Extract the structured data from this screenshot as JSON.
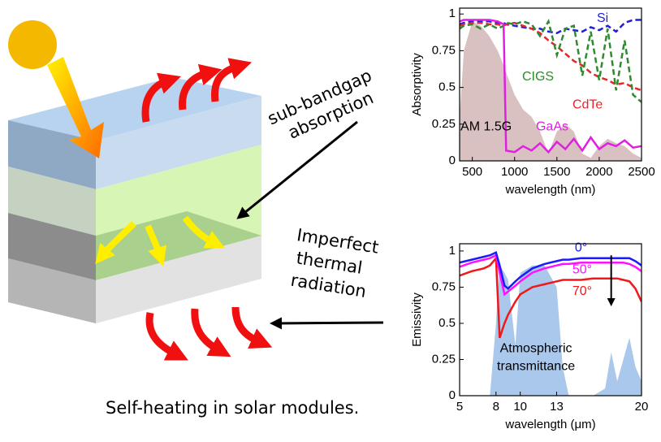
{
  "diagram": {
    "labels": [
      {
        "lines": [
          "sub-bandgap",
          "absorption"
        ]
      },
      {
        "lines": [
          "Imperfect",
          "thermal",
          "radiation"
        ]
      }
    ],
    "caption": "Self-heating in solar modules."
  },
  "chart_data": [
    {
      "type": "line",
      "y_label": "Absorptivity",
      "x_label": "wavelength (nm)",
      "x": [
        350,
        400,
        500,
        600,
        700,
        800,
        870,
        900,
        1000,
        1100,
        1200,
        1300,
        1400,
        1500,
        1600,
        1700,
        1800,
        1900,
        2000,
        2100,
        2200,
        2300,
        2400,
        2500
      ],
      "xlim": [
        350,
        2500
      ],
      "xticks": [
        500,
        1000,
        1500,
        2000,
        2500
      ],
      "ylim": [
        0,
        1.04
      ],
      "yticks": [
        0,
        0.25,
        0.5,
        0.75,
        1
      ],
      "series": [
        {
          "name": "AM 1.5G",
          "kind": "area",
          "color": "#d9c1c1",
          "values": [
            0.3,
            0.75,
            0.95,
            0.92,
            0.85,
            0.75,
            0.65,
            0.6,
            0.45,
            0.35,
            0.3,
            0.2,
            0.05,
            0.2,
            0.25,
            0.2,
            0.05,
            0.02,
            0.1,
            0.15,
            0.12,
            0.1,
            0.05,
            0.02
          ]
        },
        {
          "name": "Si",
          "color": "#1f1fdc",
          "dash": true,
          "values": [
            0.93,
            0.94,
            0.95,
            0.95,
            0.95,
            0.94,
            0.94,
            0.93,
            0.92,
            0.91,
            0.9,
            0.9,
            0.88,
            0.87,
            0.9,
            0.89,
            0.88,
            0.91,
            0.89,
            0.92,
            0.88,
            0.94,
            0.96,
            0.96
          ]
        },
        {
          "name": "CdTe",
          "color": "#e8252b",
          "dash": true,
          "values": [
            0.92,
            0.93,
            0.94,
            0.94,
            0.93,
            0.93,
            0.92,
            0.93,
            0.94,
            0.92,
            0.9,
            0.87,
            0.82,
            0.78,
            0.73,
            0.68,
            0.65,
            0.6,
            0.57,
            0.55,
            0.52,
            0.53,
            0.5,
            0.48
          ]
        },
        {
          "name": "CIGS",
          "color": "#2e8b2e",
          "dash": true,
          "values": [
            0.9,
            0.92,
            0.93,
            0.9,
            0.93,
            0.9,
            0.92,
            0.94,
            0.93,
            0.95,
            0.93,
            0.85,
            0.95,
            0.72,
            0.9,
            0.92,
            0.58,
            0.88,
            0.55,
            0.9,
            0.48,
            0.82,
            0.45,
            0.4
          ]
        },
        {
          "name": "GaAs",
          "color": "#e020e0",
          "dash": false,
          "values": [
            0.95,
            0.96,
            0.96,
            0.96,
            0.96,
            0.95,
            0.93,
            0.07,
            0.06,
            0.1,
            0.07,
            0.12,
            0.06,
            0.13,
            0.08,
            0.15,
            0.07,
            0.16,
            0.08,
            0.12,
            0.1,
            0.14,
            0.09,
            0.1
          ]
        }
      ]
    },
    {
      "type": "line",
      "y_label": "Emissivity",
      "x_label": "wavelength (μm)",
      "x": [
        5,
        6,
        7,
        7.5,
        8,
        8.3,
        8.7,
        9,
        9.6,
        10,
        11,
        12,
        13,
        13.5,
        14,
        15,
        16,
        17,
        17.5,
        18,
        18.5,
        19,
        19.5,
        20
      ],
      "xlim": [
        5,
        20
      ],
      "xticks": [
        5,
        8,
        10,
        13,
        20
      ],
      "ylim": [
        0,
        1.05
      ],
      "yticks": [
        0,
        0.25,
        0.5,
        0.75,
        1
      ],
      "series": [
        {
          "label": [
            "Atmospheric",
            "transmittance"
          ],
          "kind": "area",
          "color": "#a9c8ec",
          "values": [
            0,
            0,
            0,
            0,
            0.5,
            0.9,
            0.85,
            0.8,
            0.35,
            0.85,
            0.9,
            0.9,
            0.75,
            0.2,
            0,
            0,
            0,
            0.05,
            0.3,
            0.1,
            0.25,
            0.4,
            0.2,
            0.1
          ]
        },
        {
          "name": "70°",
          "color": "#f01818",
          "dash": false,
          "values": [
            0.83,
            0.86,
            0.88,
            0.9,
            0.95,
            0.4,
            0.5,
            0.56,
            0.65,
            0.7,
            0.75,
            0.77,
            0.79,
            0.8,
            0.8,
            0.8,
            0.81,
            0.81,
            0.81,
            0.81,
            0.8,
            0.79,
            0.74,
            0.65
          ]
        },
        {
          "name": "50°",
          "color": "#ff10ff",
          "dash": false,
          "values": [
            0.89,
            0.92,
            0.94,
            0.95,
            0.97,
            0.85,
            0.7,
            0.72,
            0.76,
            0.79,
            0.85,
            0.88,
            0.9,
            0.91,
            0.91,
            0.92,
            0.92,
            0.92,
            0.92,
            0.92,
            0.92,
            0.91,
            0.89,
            0.86
          ]
        },
        {
          "name": "0°",
          "color": "#1a1aff",
          "dash": false,
          "values": [
            0.92,
            0.94,
            0.96,
            0.97,
            0.99,
            0.9,
            0.76,
            0.74,
            0.79,
            0.82,
            0.88,
            0.91,
            0.93,
            0.94,
            0.94,
            0.95,
            0.95,
            0.95,
            0.95,
            0.95,
            0.95,
            0.95,
            0.93,
            0.9
          ]
        }
      ]
    }
  ]
}
